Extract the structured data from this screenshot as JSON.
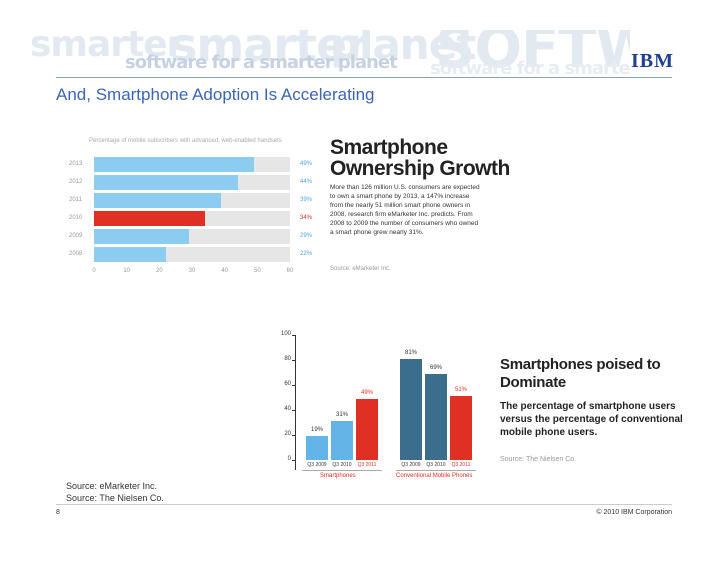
{
  "header": {
    "banner_words": [
      "smarter",
      "planet",
      "SOFTWARE",
      "software for a smarter planet"
    ],
    "logo": "IBM",
    "title": "And, Smartphone Adoption Is Accelerating"
  },
  "colors": {
    "blue_bar": "#8cccf0",
    "red_bar": "#e03024",
    "dark_blue_col": "#3a6e8c",
    "light_blue_col": "#64b4e8",
    "title_blue": "#3a65b8"
  },
  "chart_data": [
    {
      "type": "bar",
      "orientation": "horizontal",
      "title": "Percentage of mobile subscribers with advanced, web-enabled handsets",
      "categories": [
        "2013",
        "2012",
        "2011",
        "2010",
        "2009",
        "2008"
      ],
      "values": [
        49,
        44,
        39,
        34,
        29,
        22
      ],
      "labels": [
        "49%",
        "44%",
        "39%",
        "34%",
        "29%",
        "22%"
      ],
      "highlight": "2010",
      "xlim": [
        0,
        60
      ],
      "x_ticks": [
        0,
        10,
        20,
        30,
        40,
        50,
        60
      ]
    },
    {
      "type": "bar",
      "title": "Smartphones poised to Dominate",
      "ylim": [
        0,
        100
      ],
      "y_ticks": [
        0,
        20,
        40,
        60,
        80,
        100
      ],
      "groups": [
        {
          "name": "Smartphones",
          "categories": [
            "Q3 2009",
            "Q3 2010",
            "Q3 2011"
          ],
          "values": [
            19,
            31,
            49
          ],
          "labels": [
            "19%",
            "31%",
            "49%"
          ]
        },
        {
          "name": "Conventional Mobile Phones",
          "categories": [
            "Q3 2009",
            "Q3 2010",
            "Q3 2011"
          ],
          "values": [
            81,
            69,
            51
          ],
          "labels": [
            "81%",
            "69%",
            "51%"
          ]
        }
      ]
    }
  ],
  "ownership": {
    "headline_line1": "Smartphone",
    "headline_line2": "Ownership Growth",
    "body": "More than 126 million U.S. consumers are expected to own a smart phone by 2013, a 147% increase from the nearly 51 million smart phone owners in 2008, research firm eMarketer Inc. predicts. From 2008 to 2009 the number of consumers who owned a smart phone grew nearly 31%.",
    "source": "Source: eMarketer Inc."
  },
  "dominate": {
    "headline_line1": "Smartphones poised to",
    "headline_line2": "Dominate",
    "body": "The percentage of smartphone users versus the percentage of conventional mobile phone users.",
    "source": "Source: The Nielsen Co."
  },
  "footer": {
    "source1": "Source: eMarketer Inc.",
    "source2": "Source: The Nielsen Co.",
    "page_number": "8",
    "copyright": "© 2010 IBM Corporation"
  }
}
